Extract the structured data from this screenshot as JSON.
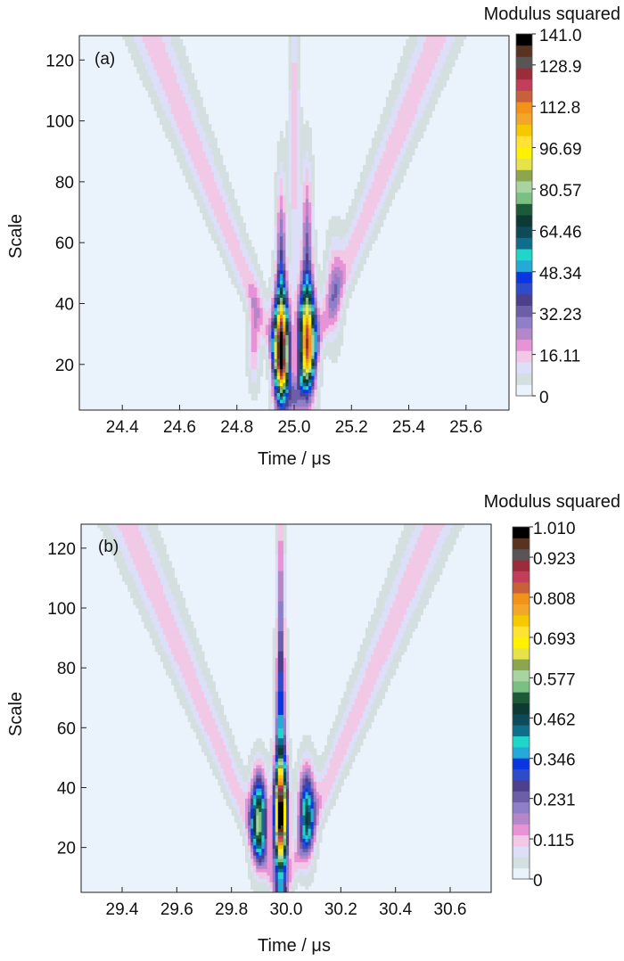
{
  "colormap": [
    "#eaf3fb",
    "#d4dfe0",
    "#dcdff7",
    "#f1c8e6",
    "#e793d6",
    "#b587c8",
    "#8f7fc8",
    "#6d5ea8",
    "#4e3f8c",
    "#2f4bc7",
    "#0a35e0",
    "#24a9d8",
    "#1fd6c8",
    "#0f6f8a",
    "#0f4a5a",
    "#0e3a36",
    "#1e5a3a",
    "#7bbf83",
    "#a8d4a1",
    "#8ba64f",
    "#e6e34a",
    "#fff200",
    "#ffe234",
    "#f5c800",
    "#f3a72a",
    "#f29218",
    "#c8603c",
    "#c33e5a",
    "#9c2c3a",
    "#5a5555",
    "#5a3320",
    "#000000"
  ],
  "chart_data": [
    {
      "type": "heatmap",
      "panel_label": "(a)",
      "title": "",
      "xlabel": "Time / μs",
      "ylabel": "Scale",
      "xlim": [
        24.25,
        25.75
      ],
      "ylim": [
        5,
        128
      ],
      "xticks": [
        24.4,
        24.6,
        24.8,
        25.0,
        25.2,
        25.4,
        25.6
      ],
      "xtick_labels": [
        "24.4",
        "24.6",
        "24.8",
        "25.0",
        "25.2",
        "25.4",
        "25.6"
      ],
      "yticks": [
        20,
        40,
        60,
        80,
        100,
        120
      ],
      "ytick_labels": [
        "20",
        "40",
        "60",
        "80",
        "100",
        "120"
      ],
      "colorbar": {
        "title": "Modulus squared",
        "min": 0,
        "max": 141.0,
        "labels": [
          "141.0",
          "128.9",
          "112.8",
          "96.69",
          "80.57",
          "64.46",
          "48.34",
          "32.23",
          "16.11",
          "0"
        ],
        "label_values": [
          141.0,
          128.9,
          112.8,
          96.69,
          80.57,
          64.46,
          48.34,
          32.23,
          16.11,
          0
        ]
      },
      "features": [
        {
          "kind": "peak",
          "t": 24.955,
          "scale": 25,
          "value": 141.0
        },
        {
          "kind": "peak",
          "t": 25.045,
          "scale": 28,
          "value": 115.0
        }
      ]
    },
    {
      "type": "heatmap",
      "panel_label": "(b)",
      "title": "",
      "xlabel": "Time / μs",
      "ylabel": "Scale",
      "xlim": [
        29.25,
        30.75
      ],
      "ylim": [
        5,
        128
      ],
      "xticks": [
        29.4,
        29.6,
        29.8,
        30.0,
        30.2,
        30.4,
        30.6
      ],
      "xtick_labels": [
        "29.4",
        "29.6",
        "29.8",
        "30.0",
        "30.2",
        "30.4",
        "30.6"
      ],
      "yticks": [
        20,
        40,
        60,
        80,
        100,
        120
      ],
      "ytick_labels": [
        "20",
        "40",
        "60",
        "80",
        "100",
        "120"
      ],
      "colorbar": {
        "title": "Modulus squared",
        "min": 0,
        "max": 1.01,
        "labels": [
          "1.010",
          "0.923",
          "0.808",
          "0.693",
          "0.577",
          "0.462",
          "0.346",
          "0.231",
          "0.115",
          "0"
        ],
        "label_values": [
          1.01,
          0.923,
          0.808,
          0.693,
          0.577,
          0.462,
          0.346,
          0.231,
          0.115,
          0
        ]
      },
      "features": [
        {
          "kind": "peak",
          "t": 29.9,
          "scale": 30,
          "value": 0.55
        },
        {
          "kind": "peak",
          "t": 29.98,
          "scale": 30,
          "value": 1.01
        },
        {
          "kind": "peak",
          "t": 30.075,
          "scale": 32,
          "value": 0.42
        }
      ]
    }
  ]
}
